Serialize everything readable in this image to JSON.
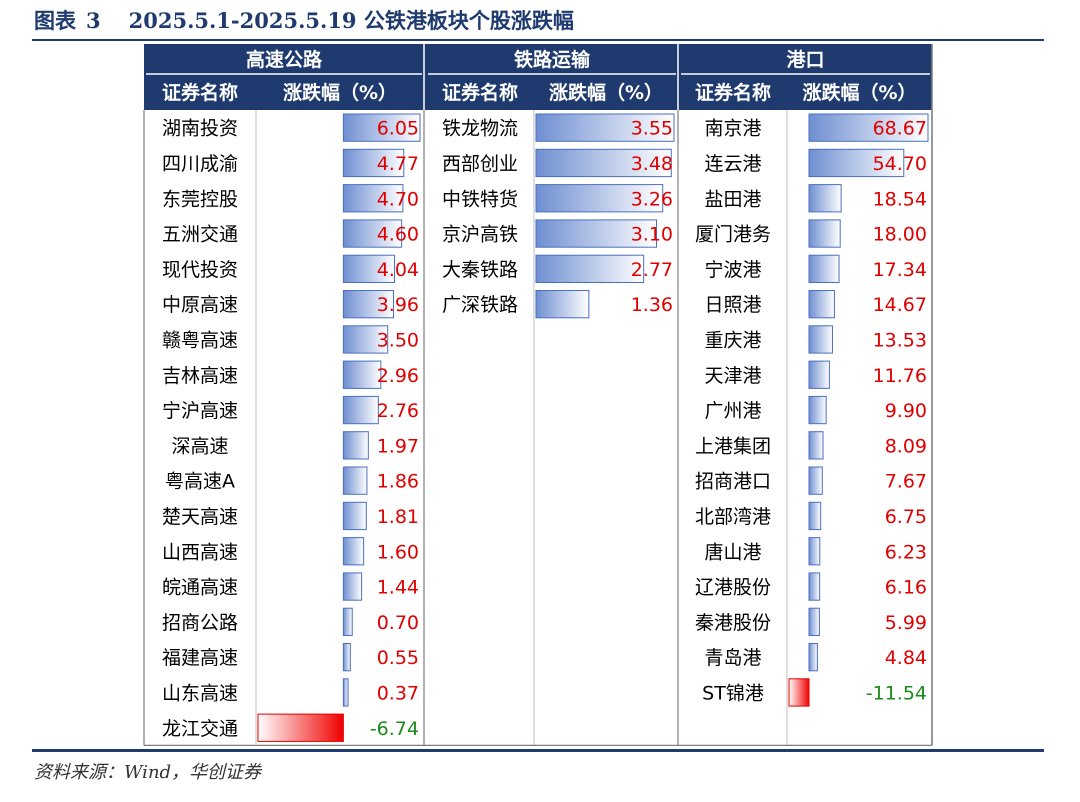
{
  "caption": {
    "label": "图表",
    "number": "3",
    "text": "2025.5.1-2025.5.19 公铁港板块个股涨跌幅"
  },
  "source": "资料来源：Wind，华创证券",
  "colors": {
    "header_bg": "#1f3a6e",
    "positive_bar": "#6f8fd1",
    "negative_bar": "#f00000",
    "positive_text": "#e00000",
    "negative_text": "#1c8a1c",
    "rule": "#1f3a6e"
  },
  "chart_data": {
    "type": "table",
    "column_headers": [
      "证券名称",
      "涨跌幅（%）"
    ],
    "groups": [
      {
        "title": "高速公路",
        "rows": [
          {
            "name": "湖南投资",
            "value": 6.05
          },
          {
            "name": "四川成渝",
            "value": 4.77
          },
          {
            "name": "东莞控股",
            "value": 4.7
          },
          {
            "name": "五洲交通",
            "value": 4.6
          },
          {
            "name": "现代投资",
            "value": 4.04
          },
          {
            "name": "中原高速",
            "value": 3.96
          },
          {
            "name": "赣粤高速",
            "value": 3.5
          },
          {
            "name": "吉林高速",
            "value": 2.96
          },
          {
            "name": "宁沪高速",
            "value": 2.76
          },
          {
            "name": "深高速",
            "value": 1.97
          },
          {
            "name": "粤高速A",
            "value": 1.86
          },
          {
            "name": "楚天高速",
            "value": 1.81
          },
          {
            "name": "山西高速",
            "value": 1.6
          },
          {
            "name": "皖通高速",
            "value": 1.44
          },
          {
            "name": "招商公路",
            "value": 0.7
          },
          {
            "name": "福建高速",
            "value": 0.55
          },
          {
            "name": "山东高速",
            "value": 0.37
          },
          {
            "name": "龙江交通",
            "value": -6.74
          }
        ]
      },
      {
        "title": "铁路运输",
        "rows": [
          {
            "name": "铁龙物流",
            "value": 3.55
          },
          {
            "name": "西部创业",
            "value": 3.48
          },
          {
            "name": "中铁特货",
            "value": 3.26
          },
          {
            "name": "京沪高铁",
            "value": 3.1
          },
          {
            "name": "大秦铁路",
            "value": 2.77
          },
          {
            "name": "广深铁路",
            "value": 1.36
          }
        ]
      },
      {
        "title": "港口",
        "rows": [
          {
            "name": "南京港",
            "value": 68.67
          },
          {
            "name": "连云港",
            "value": 54.7
          },
          {
            "name": "盐田港",
            "value": 18.54
          },
          {
            "name": "厦门港务",
            "value": 18.0
          },
          {
            "name": "宁波港",
            "value": 17.34
          },
          {
            "name": "日照港",
            "value": 14.67
          },
          {
            "name": "重庆港",
            "value": 13.53
          },
          {
            "name": "天津港",
            "value": 11.76
          },
          {
            "name": "广州港",
            "value": 9.9
          },
          {
            "name": "上港集团",
            "value": 8.09
          },
          {
            "name": "招商港口",
            "value": 7.67
          },
          {
            "name": "北部湾港",
            "value": 6.75
          },
          {
            "name": "唐山港",
            "value": 6.23
          },
          {
            "name": "辽港股份",
            "value": 6.16
          },
          {
            "name": "秦港股份",
            "value": 5.99
          },
          {
            "name": "青岛港",
            "value": 4.84
          },
          {
            "name": "ST锦港",
            "value": -11.54
          }
        ]
      }
    ]
  }
}
